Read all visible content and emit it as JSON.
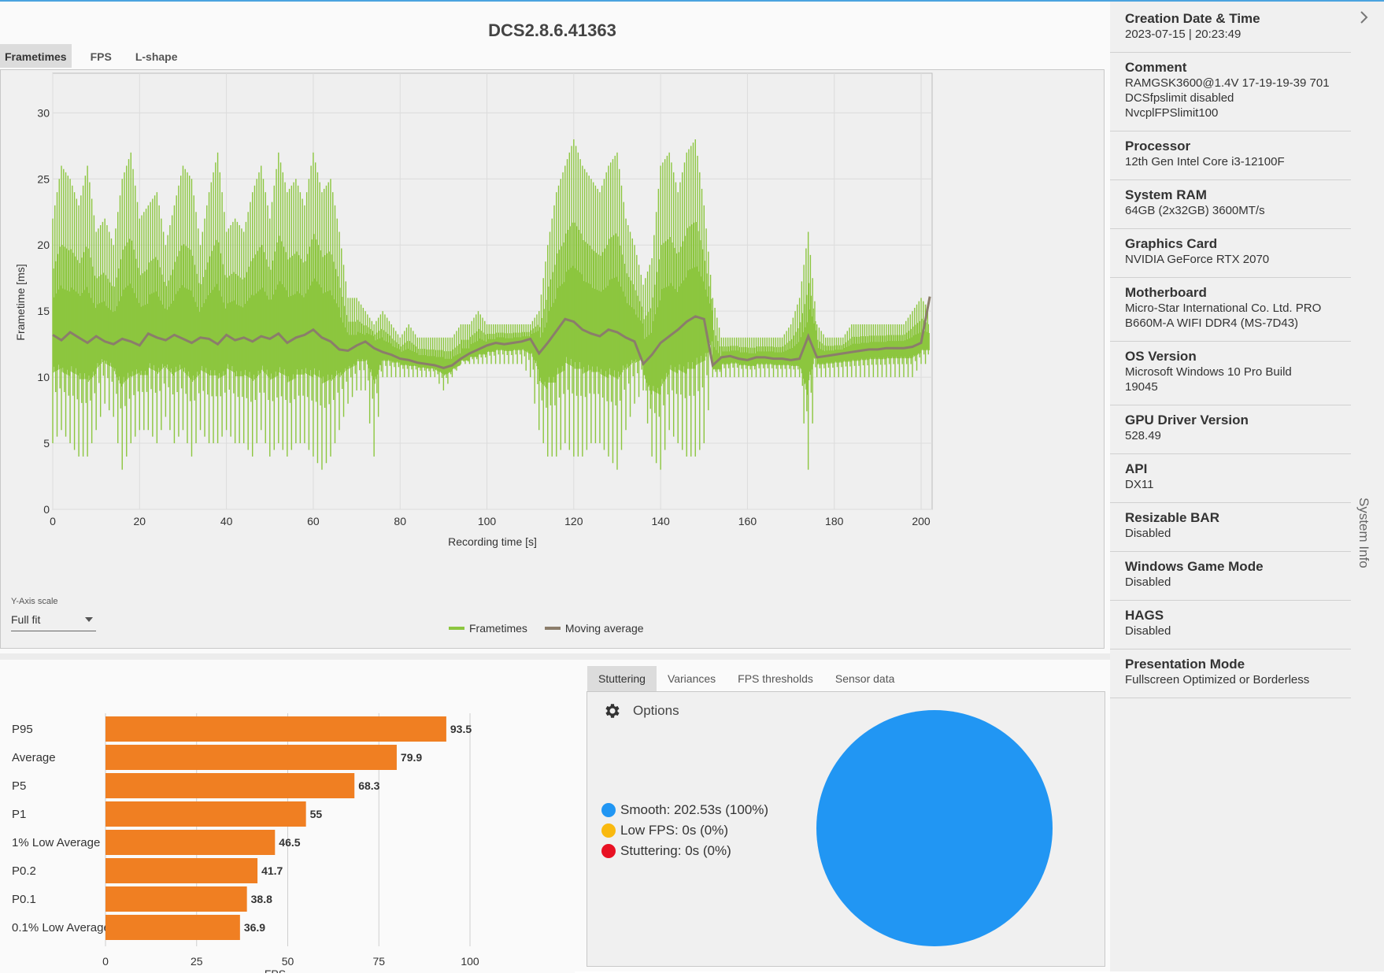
{
  "title": "DCS2.8.6.41363",
  "tabs": [
    "Frametimes",
    "FPS",
    "L-shape"
  ],
  "frametime_chart": {
    "chart_data": {
      "type": "line",
      "xlabel": "Recording time [s]",
      "ylabel": "Frametime [ms]",
      "xlim": [
        0,
        202.53
      ],
      "ylim": [
        0,
        33
      ],
      "xticks": [
        0,
        20,
        40,
        60,
        80,
        100,
        120,
        140,
        160,
        180,
        200
      ],
      "yticks": [
        0,
        5,
        10,
        15,
        20,
        25,
        30
      ],
      "grid": true,
      "legend_position": "bottom-center",
      "series": [
        {
          "name": "Frametimes",
          "color": "#8cc63f",
          "x": [
            0,
            2,
            4,
            6,
            8,
            10,
            12,
            14,
            16,
            18,
            20,
            22,
            24,
            26,
            28,
            30,
            32,
            34,
            36,
            38,
            40,
            42,
            44,
            46,
            48,
            50,
            52,
            54,
            56,
            58,
            60,
            62,
            64,
            66,
            68,
            70,
            72,
            74,
            76,
            78,
            80,
            82,
            84,
            86,
            88,
            90,
            92,
            94,
            96,
            98,
            100,
            102,
            104,
            106,
            108,
            110,
            112,
            114,
            116,
            118,
            120,
            122,
            124,
            126,
            128,
            130,
            132,
            134,
            136,
            138,
            140,
            142,
            144,
            146,
            148,
            150,
            152,
            154,
            156,
            158,
            160,
            162,
            164,
            166,
            168,
            170,
            172,
            174,
            176,
            178,
            180,
            182,
            184,
            186,
            188,
            190,
            192,
            194,
            196,
            198,
            200,
            202
          ],
          "y_max": [
            22,
            26,
            25,
            23,
            26,
            21,
            22,
            20,
            25,
            27,
            22,
            23,
            24,
            20,
            23,
            26,
            25,
            20,
            24,
            27,
            21,
            22,
            21,
            24,
            26,
            22,
            27,
            24,
            25,
            23,
            27,
            24,
            25,
            21,
            16,
            16,
            15,
            14,
            15,
            14,
            13,
            14,
            13,
            13,
            13,
            13,
            13,
            14,
            14,
            15,
            14,
            14,
            14,
            14,
            14,
            14,
            15,
            20,
            24,
            26,
            28,
            26,
            25,
            24,
            26,
            27,
            22,
            20,
            17,
            19,
            26,
            27,
            24,
            27,
            28,
            23,
            16,
            13,
            13,
            13,
            13,
            13,
            13,
            13,
            13,
            14,
            16,
            21,
            14,
            13,
            13,
            13,
            14,
            14,
            14,
            14,
            14,
            14,
            14,
            15,
            16,
            15
          ],
          "y_min": [
            5,
            6,
            5,
            4,
            4,
            6,
            8,
            7,
            3,
            5,
            6,
            6,
            5,
            7,
            5,
            6,
            4,
            6,
            5,
            5,
            6,
            5,
            5,
            4,
            6,
            4,
            5,
            4,
            5,
            5,
            4,
            3,
            4,
            6,
            8,
            9,
            9,
            4,
            10,
            10,
            10,
            10,
            10,
            10,
            10,
            9,
            10,
            11,
            11,
            11,
            11,
            11,
            11,
            11,
            11,
            10,
            6,
            4,
            4,
            5,
            4,
            4,
            5,
            5,
            4,
            3,
            6,
            8,
            9,
            4,
            3,
            6,
            5,
            4,
            4,
            5,
            10,
            10,
            10,
            10,
            10,
            10,
            10,
            10,
            10,
            10,
            10,
            3,
            10,
            10,
            10,
            10,
            10,
            10,
            10,
            10,
            10,
            10,
            10,
            10,
            11,
            11
          ]
        },
        {
          "name": "Moving average",
          "color": "#8b7d6b",
          "x": [
            0,
            2,
            4,
            6,
            8,
            10,
            12,
            14,
            16,
            18,
            20,
            22,
            24,
            26,
            28,
            30,
            32,
            34,
            36,
            38,
            40,
            42,
            44,
            46,
            48,
            50,
            52,
            54,
            56,
            58,
            60,
            62,
            64,
            66,
            68,
            70,
            72,
            74,
            76,
            78,
            80,
            82,
            84,
            86,
            88,
            90,
            92,
            94,
            96,
            98,
            100,
            102,
            104,
            106,
            108,
            110,
            112,
            114,
            116,
            118,
            120,
            122,
            124,
            126,
            128,
            130,
            132,
            134,
            136,
            138,
            140,
            142,
            144,
            146,
            148,
            150,
            152,
            154,
            156,
            158,
            160,
            162,
            164,
            166,
            168,
            170,
            172,
            174,
            176,
            178,
            180,
            182,
            184,
            186,
            188,
            190,
            192,
            194,
            196,
            198,
            200,
            202
          ],
          "y": [
            13.2,
            12.8,
            13.4,
            13.0,
            12.6,
            13.1,
            12.7,
            12.5,
            12.9,
            12.7,
            12.4,
            13.3,
            13.0,
            12.8,
            13.2,
            12.9,
            12.6,
            13.0,
            12.9,
            12.5,
            13.2,
            12.8,
            13.0,
            12.7,
            13.1,
            12.9,
            13.3,
            12.6,
            13.0,
            13.2,
            13.6,
            13.0,
            12.7,
            12.1,
            12.0,
            12.4,
            12.7,
            12.2,
            11.9,
            11.7,
            11.4,
            11.3,
            11.1,
            11.0,
            10.9,
            10.7,
            10.9,
            11.4,
            11.8,
            12.1,
            12.4,
            12.6,
            12.5,
            12.6,
            12.7,
            12.9,
            11.8,
            12.6,
            13.5,
            14.4,
            14.2,
            13.6,
            13.3,
            13.1,
            13.6,
            13.4,
            13.0,
            12.7,
            11.0,
            11.7,
            12.6,
            13.1,
            13.6,
            14.2,
            14.6,
            14.4,
            10.9,
            11.5,
            11.6,
            11.4,
            11.3,
            11.5,
            11.5,
            11.4,
            11.4,
            11.3,
            11.4,
            13.1,
            11.5,
            11.6,
            11.7,
            11.8,
            11.9,
            12.0,
            12.1,
            12.1,
            12.2,
            12.2,
            12.2,
            12.3,
            12.6,
            16.1
          ]
        }
      ]
    }
  },
  "y_axis_scale": {
    "label": "Y-Axis scale",
    "value": "Full fit"
  },
  "bar_chart": {
    "chart_data": {
      "type": "bar",
      "orientation": "horizontal",
      "categories": [
        "P95",
        "Average",
        "P5",
        "P1",
        "1% Low Average",
        "P0.2",
        "P0.1",
        "0.1% Low Average"
      ],
      "values": [
        93.5,
        79.9,
        68.3,
        55,
        46.5,
        41.7,
        38.8,
        36.9
      ],
      "value_labels": [
        "93.5",
        "79.9",
        "68.3",
        "55",
        "46.5",
        "41.7",
        "38.8",
        "36.9"
      ],
      "xlabel": "FPS",
      "xlim": [
        0,
        100
      ],
      "xticks": [
        "0",
        "25",
        "50",
        "75",
        "100"
      ],
      "color": "#f07f22",
      "grid": true
    }
  },
  "analysis_tabs": [
    "Stuttering",
    "Variances",
    "FPS thresholds",
    "Sensor data"
  ],
  "options": {
    "label": "Options",
    "icon": "gear-icon"
  },
  "stuttering": {
    "chart_data": {
      "type": "pie",
      "categories": [
        "Smooth",
        "Low FPS",
        "Stuttering"
      ],
      "values": [
        202.53,
        0,
        0
      ],
      "colors": [
        "#2196f3",
        "#f9b90f",
        "#e81123"
      ],
      "legend_labels": [
        "Smooth:  202.53s (100%)",
        "Low FPS:  0s (0%)",
        "Stuttering:  0s (0%)"
      ],
      "legend_position": "left"
    }
  },
  "system_info": {
    "panel_title": "System Info",
    "items": [
      {
        "label": "Creation Date & Time",
        "value": [
          "2023-07-15  |  20:23:49"
        ]
      },
      {
        "label": "Comment",
        "value": [
          "RAMGSK3600@1.4V 17-19-19-39 701",
          "DCSfpslimit disabled",
          "NvcplFPSlimit100"
        ]
      },
      {
        "label": "Processor",
        "value": [
          "12th Gen Intel Core i3-12100F"
        ]
      },
      {
        "label": "System RAM",
        "value": [
          "64GB (2x32GB) 3600MT/s"
        ]
      },
      {
        "label": "Graphics Card",
        "value": [
          "NVIDIA GeForce RTX 2070"
        ]
      },
      {
        "label": "Motherboard",
        "value": [
          "Micro-Star International Co. Ltd. PRO",
          "B660M-A WIFI DDR4 (MS-7D43)"
        ]
      },
      {
        "label": "OS Version",
        "value": [
          "Microsoft Windows 10 Pro Build",
          "19045"
        ]
      },
      {
        "label": "GPU Driver Version",
        "value": [
          "528.49"
        ]
      },
      {
        "label": "API",
        "value": [
          "DX11"
        ]
      },
      {
        "label": "Resizable BAR",
        "value": [
          "Disabled"
        ]
      },
      {
        "label": "Windows Game Mode",
        "value": [
          "Disabled"
        ]
      },
      {
        "label": "HAGS",
        "value": [
          "Disabled"
        ]
      },
      {
        "label": "Presentation Mode",
        "value": [
          "Fullscreen Optimized or Borderless"
        ]
      }
    ]
  }
}
